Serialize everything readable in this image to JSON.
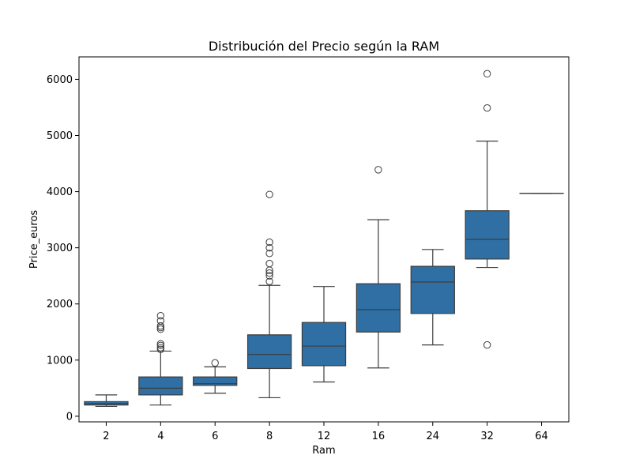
{
  "chart_data": {
    "type": "box",
    "title": "Distribución del Precio según la RAM",
    "xlabel": "Ram",
    "ylabel": "Price_euros",
    "ylim": [
      -100,
      6400
    ],
    "yticks": [
      0,
      1000,
      2000,
      3000,
      4000,
      5000,
      6000
    ],
    "grid": false,
    "box_color": "#2f6fa3",
    "line_color": "#3d3d3d",
    "categories": [
      "2",
      "4",
      "6",
      "8",
      "12",
      "16",
      "24",
      "32",
      "64"
    ],
    "boxes": [
      {
        "category": "2",
        "whisker_low": 175,
        "q1": 200,
        "median": 225,
        "q3": 260,
        "whisker_high": 380,
        "outliers": []
      },
      {
        "category": "4",
        "whisker_low": 200,
        "q1": 380,
        "median": 500,
        "q3": 700,
        "whisker_high": 1160,
        "outliers": [
          1190,
          1220,
          1260,
          1290,
          1550,
          1580,
          1610,
          1700,
          1790
        ]
      },
      {
        "category": "6",
        "whisker_low": 410,
        "q1": 550,
        "median": 580,
        "q3": 700,
        "whisker_high": 880,
        "outliers": [
          950
        ]
      },
      {
        "category": "8",
        "whisker_low": 330,
        "q1": 850,
        "median": 1100,
        "q3": 1450,
        "whisker_high": 2330,
        "outliers": [
          2400,
          2500,
          2550,
          2600,
          2720,
          2900,
          3000,
          3100,
          3950
        ]
      },
      {
        "category": "12",
        "whisker_low": 610,
        "q1": 900,
        "median": 1250,
        "q3": 1670,
        "whisker_high": 2310,
        "outliers": []
      },
      {
        "category": "16",
        "whisker_low": 860,
        "q1": 1500,
        "median": 1900,
        "q3": 2360,
        "whisker_high": 3500,
        "outliers": [
          4390
        ]
      },
      {
        "category": "24",
        "whisker_low": 1270,
        "q1": 1830,
        "median": 2390,
        "q3": 2670,
        "whisker_high": 2970,
        "outliers": []
      },
      {
        "category": "32",
        "whisker_low": 2650,
        "q1": 2800,
        "median": 3150,
        "q3": 3660,
        "whisker_high": 4900,
        "outliers": [
          1270,
          5490,
          6100
        ]
      },
      {
        "category": "64",
        "whisker_low": 3970,
        "q1": 3970,
        "median": 3970,
        "q3": 3970,
        "whisker_high": 3970,
        "outliers": []
      }
    ]
  }
}
